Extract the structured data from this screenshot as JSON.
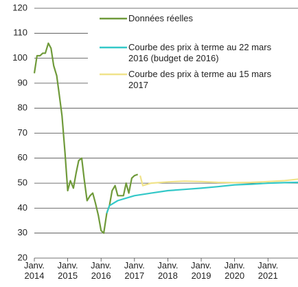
{
  "chart_data": {
    "type": "line",
    "xlim": [
      2014,
      2021.9
    ],
    "xticks": [
      {
        "value": 2014,
        "label": "Janv. 2014"
      },
      {
        "value": 2015,
        "label": "Janv. 2015"
      },
      {
        "value": 2016,
        "label": "Janv. 2016"
      },
      {
        "value": 2017,
        "label": "Janv. 2017"
      },
      {
        "value": 2018,
        "label": "Janv. 2018"
      },
      {
        "value": 2019,
        "label": "Janv. 2019"
      },
      {
        "value": 2020,
        "label": "Janv. 2020"
      },
      {
        "value": 2021,
        "label": "Janv. 2021"
      }
    ],
    "ylim": [
      20,
      120
    ],
    "yticks": [
      20,
      30,
      40,
      50,
      60,
      70,
      80,
      90,
      100,
      110,
      120
    ],
    "grid": true,
    "legend": "top-right",
    "series": [
      {
        "name": "Données réelles",
        "color": "#6f9a3a",
        "x": [
          2014.0,
          2014.08,
          2014.17,
          2014.25,
          2014.33,
          2014.42,
          2014.5,
          2014.58,
          2014.67,
          2014.75,
          2014.83,
          2014.92,
          2015.0,
          2015.08,
          2015.17,
          2015.25,
          2015.33,
          2015.42,
          2015.5,
          2015.58,
          2015.67,
          2015.75,
          2015.83,
          2015.92,
          2016.0,
          2016.08,
          2016.17,
          2016.25,
          2016.33,
          2016.42,
          2016.5,
          2016.58,
          2016.67,
          2016.75,
          2016.83,
          2016.92,
          2017.0,
          2017.1
        ],
        "values": [
          94,
          101,
          101,
          102,
          102,
          106,
          104,
          97,
          93,
          85,
          77,
          62,
          47,
          51,
          48,
          54,
          59,
          60,
          51,
          43,
          45,
          46,
          42,
          37,
          31,
          30,
          38,
          41,
          47,
          49,
          45,
          45,
          45,
          50,
          46,
          52,
          53,
          53.5
        ]
      },
      {
        "name": "Courbe des prix à terme au 22 mars 2016 (budget de 2016)",
        "color": "#33c8c8",
        "x": [
          2016.17,
          2016.25,
          2016.5,
          2017.0,
          2017.5,
          2018.0,
          2018.5,
          2019.0,
          2019.5,
          2020.0,
          2020.5,
          2021.0,
          2021.5,
          2021.9
        ],
        "values": [
          38,
          41,
          43,
          45,
          46,
          47,
          47.5,
          48,
          48.6,
          49.3,
          49.6,
          50,
          50.2,
          50.3
        ]
      },
      {
        "name": "Courbe des prix à terme au 15 mars 2017",
        "color": "#f0e38a",
        "x": [
          2017.17,
          2017.25,
          2017.5,
          2018.0,
          2018.5,
          2019.0,
          2019.5,
          2020.0,
          2020.5,
          2021.0,
          2021.5,
          2021.9
        ],
        "values": [
          53,
          49,
          50,
          50.5,
          50.8,
          50.6,
          50.3,
          50.2,
          50.3,
          50.6,
          51,
          51.6
        ]
      }
    ]
  }
}
